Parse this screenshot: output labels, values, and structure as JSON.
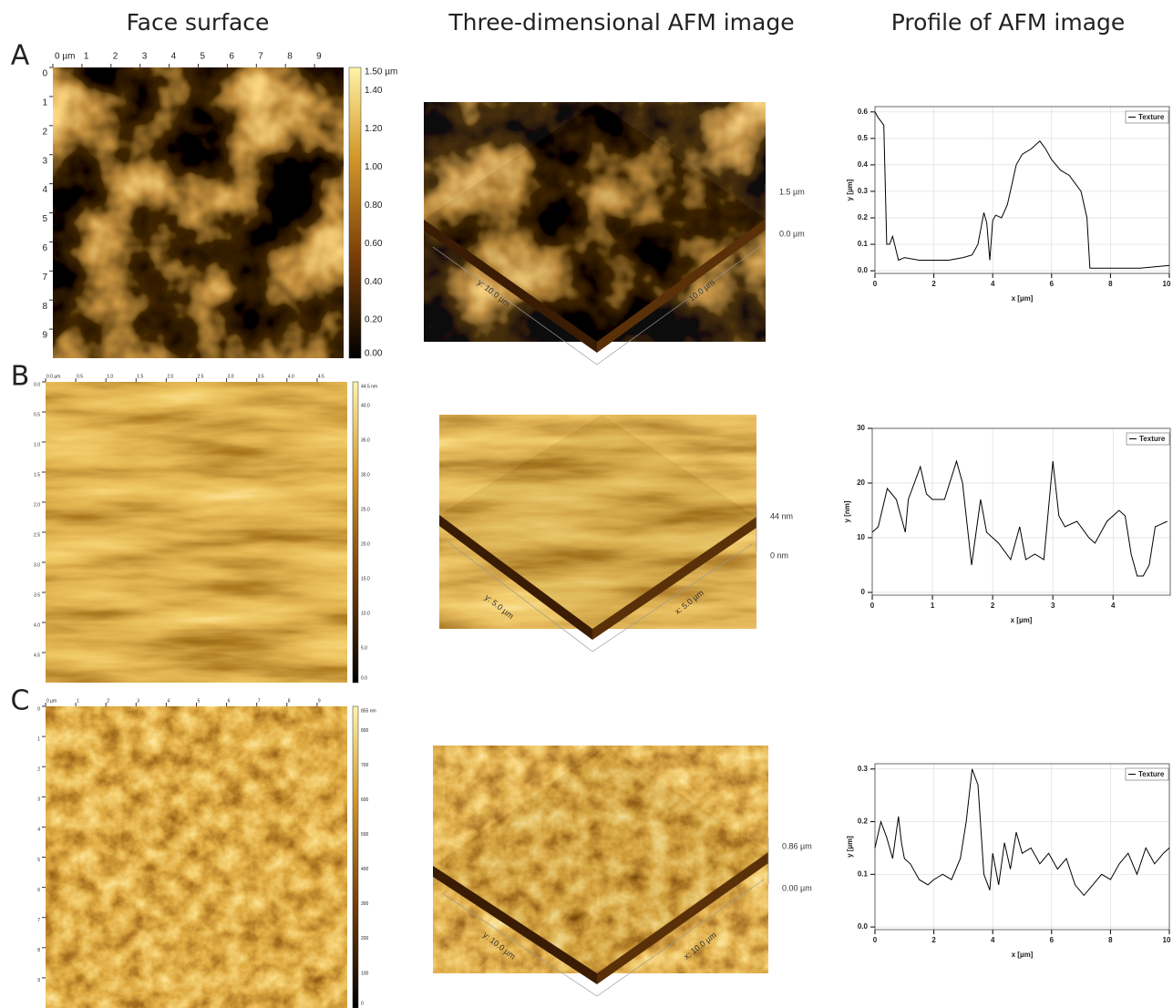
{
  "columns": [
    "Face surface",
    "Three-dimensional AFM image",
    "Profile of AFM image"
  ],
  "panels": [
    {
      "label": "A",
      "face": {
        "xticks": [
          "0 µm",
          "1",
          "2",
          "3",
          "4",
          "5",
          "6",
          "7",
          "8",
          "9"
        ],
        "yticks": [
          "0",
          "1",
          "2",
          "3",
          "4",
          "5",
          "6",
          "7",
          "8",
          "9"
        ],
        "colorbar": [
          "1.50 µm",
          "1.40",
          "1.20",
          "1.00",
          "0.80",
          "0.60",
          "0.40",
          "0.20",
          "0.00"
        ]
      },
      "view3d": {
        "z_top": "1.5 µm",
        "z_bottom": "0.0 µm",
        "x_label": "x: 10.0 µm",
        "y_label": "y: 10.0 µm"
      }
    },
    {
      "label": "B",
      "face": {
        "xticks": [
          "0.0 µm",
          "0.5",
          "1.0",
          "1.5",
          "2.0",
          "2.5",
          "3.0",
          "3.5",
          "4.0",
          "4.5"
        ],
        "yticks": [
          "0.0",
          "0.5",
          "1.0",
          "1.5",
          "2.0",
          "2.5",
          "3.0",
          "3.5",
          "4.0",
          "4.5"
        ],
        "colorbar": [
          "44.5 nm",
          "40.0",
          "35.0",
          "30.0",
          "25.0",
          "20.0",
          "15.0",
          "10.0",
          "5.0",
          "0.0"
        ]
      },
      "view3d": {
        "z_top": "44 nm",
        "z_bottom": "0 nm",
        "x_label": "x: 5.0 µm",
        "y_label": "y: 5.0 µm"
      }
    },
    {
      "label": "C",
      "face": {
        "xticks": [
          "0 µm",
          "1",
          "2",
          "3",
          "4",
          "5",
          "6",
          "7",
          "8",
          "9"
        ],
        "yticks": [
          "0",
          "1",
          "2",
          "3",
          "4",
          "5",
          "6",
          "7",
          "8",
          "9"
        ],
        "colorbar": [
          "855 nm",
          "800",
          "700",
          "600",
          "500",
          "400",
          "300",
          "200",
          "100",
          "0"
        ]
      },
      "view3d": {
        "z_top": "0.86 µm",
        "z_bottom": "0.00 µm",
        "x_label": "x: 10.0 µm",
        "y_label": "y: 10.0 µm"
      }
    }
  ],
  "chart_data": [
    {
      "type": "line",
      "xlabel": "x [µm]",
      "ylabel": "y [µm]",
      "grid": true,
      "legend": "upper right",
      "xlim": [
        0,
        10
      ],
      "ylim": [
        -0.01,
        0.62
      ],
      "xticks": [
        0,
        2,
        4,
        6,
        8,
        10
      ],
      "yticks": [
        {
          "value": 0,
          "label": "0.0"
        },
        0.1,
        0.2,
        0.3,
        0.4,
        0.5,
        0.6
      ],
      "x": [
        0,
        0.1,
        0.3,
        0.4,
        0.5,
        0.6,
        0.8,
        1.0,
        1.5,
        2.0,
        2.5,
        3.0,
        3.3,
        3.5,
        3.7,
        3.8,
        3.9,
        4.0,
        4.1,
        4.3,
        4.5,
        4.8,
        5.0,
        5.3,
        5.6,
        5.8,
        6.0,
        6.3,
        6.6,
        7.0,
        7.2,
        7.3,
        7.5,
        8,
        9,
        10
      ],
      "series": [
        {
          "name": "Texture",
          "color": "#000000",
          "values": [
            0.6,
            0.58,
            0.55,
            0.1,
            0.1,
            0.13,
            0.04,
            0.05,
            0.04,
            0.04,
            0.04,
            0.05,
            0.06,
            0.1,
            0.22,
            0.18,
            0.04,
            0.19,
            0.21,
            0.2,
            0.25,
            0.4,
            0.44,
            0.46,
            0.49,
            0.46,
            0.42,
            0.38,
            0.36,
            0.3,
            0.2,
            0.01,
            0.01,
            0.01,
            0.01,
            0.02
          ]
        }
      ]
    },
    {
      "type": "line",
      "xlabel": "x [µm]",
      "ylabel": "y [nm]",
      "grid": true,
      "legend": "upper right",
      "xlim": [
        0,
        4.95
      ],
      "ylim": [
        -0.5,
        30
      ],
      "xticks": [
        0,
        1,
        2,
        3,
        4
      ],
      "yticks": [
        0,
        10,
        20,
        30
      ],
      "x": [
        0,
        0.1,
        0.25,
        0.4,
        0.55,
        0.6,
        0.8,
        0.9,
        1.0,
        1.2,
        1.4,
        1.5,
        1.65,
        1.8,
        1.9,
        2.0,
        2.1,
        2.3,
        2.45,
        2.55,
        2.7,
        2.85,
        3.0,
        3.1,
        3.2,
        3.4,
        3.6,
        3.7,
        3.9,
        4.1,
        4.2,
        4.3,
        4.4,
        4.5,
        4.6,
        4.7,
        4.9
      ],
      "series": [
        {
          "name": "Texture",
          "color": "#000000",
          "values": [
            11,
            12,
            19,
            17,
            11,
            17,
            23,
            18,
            17,
            17,
            24,
            20,
            5,
            17,
            11,
            10,
            9,
            6,
            12,
            6,
            7,
            6,
            24,
            14,
            12,
            13,
            10,
            9,
            13,
            15,
            14,
            7,
            3,
            3,
            5,
            12,
            13
          ]
        }
      ]
    },
    {
      "type": "line",
      "xlabel": "x [µm]",
      "ylabel": "y [µm]",
      "grid": true,
      "legend": "upper right",
      "xlim": [
        0,
        10
      ],
      "ylim": [
        -0.005,
        0.31
      ],
      "xticks": [
        0,
        2,
        4,
        6,
        8,
        10
      ],
      "yticks": [
        {
          "value": 0,
          "label": "0.0"
        },
        0.1,
        0.2,
        0.3
      ],
      "x": [
        0,
        0.2,
        0.4,
        0.6,
        0.8,
        0.9,
        1.0,
        1.2,
        1.5,
        1.8,
        2.0,
        2.3,
        2.6,
        2.9,
        3.1,
        3.3,
        3.5,
        3.7,
        3.9,
        4.0,
        4.2,
        4.4,
        4.6,
        4.8,
        5.0,
        5.3,
        5.6,
        5.9,
        6.2,
        6.5,
        6.8,
        7.1,
        7.4,
        7.7,
        8.0,
        8.3,
        8.6,
        8.9,
        9.2,
        9.5,
        9.8,
        10
      ],
      "series": [
        {
          "name": "Texture",
          "color": "#000000",
          "values": [
            0.15,
            0.2,
            0.17,
            0.13,
            0.21,
            0.16,
            0.13,
            0.12,
            0.09,
            0.08,
            0.09,
            0.1,
            0.09,
            0.13,
            0.2,
            0.3,
            0.27,
            0.1,
            0.07,
            0.14,
            0.08,
            0.16,
            0.11,
            0.18,
            0.14,
            0.15,
            0.12,
            0.14,
            0.11,
            0.13,
            0.08,
            0.06,
            0.08,
            0.1,
            0.09,
            0.12,
            0.14,
            0.1,
            0.15,
            0.12,
            0.14,
            0.15
          ]
        }
      ]
    }
  ]
}
